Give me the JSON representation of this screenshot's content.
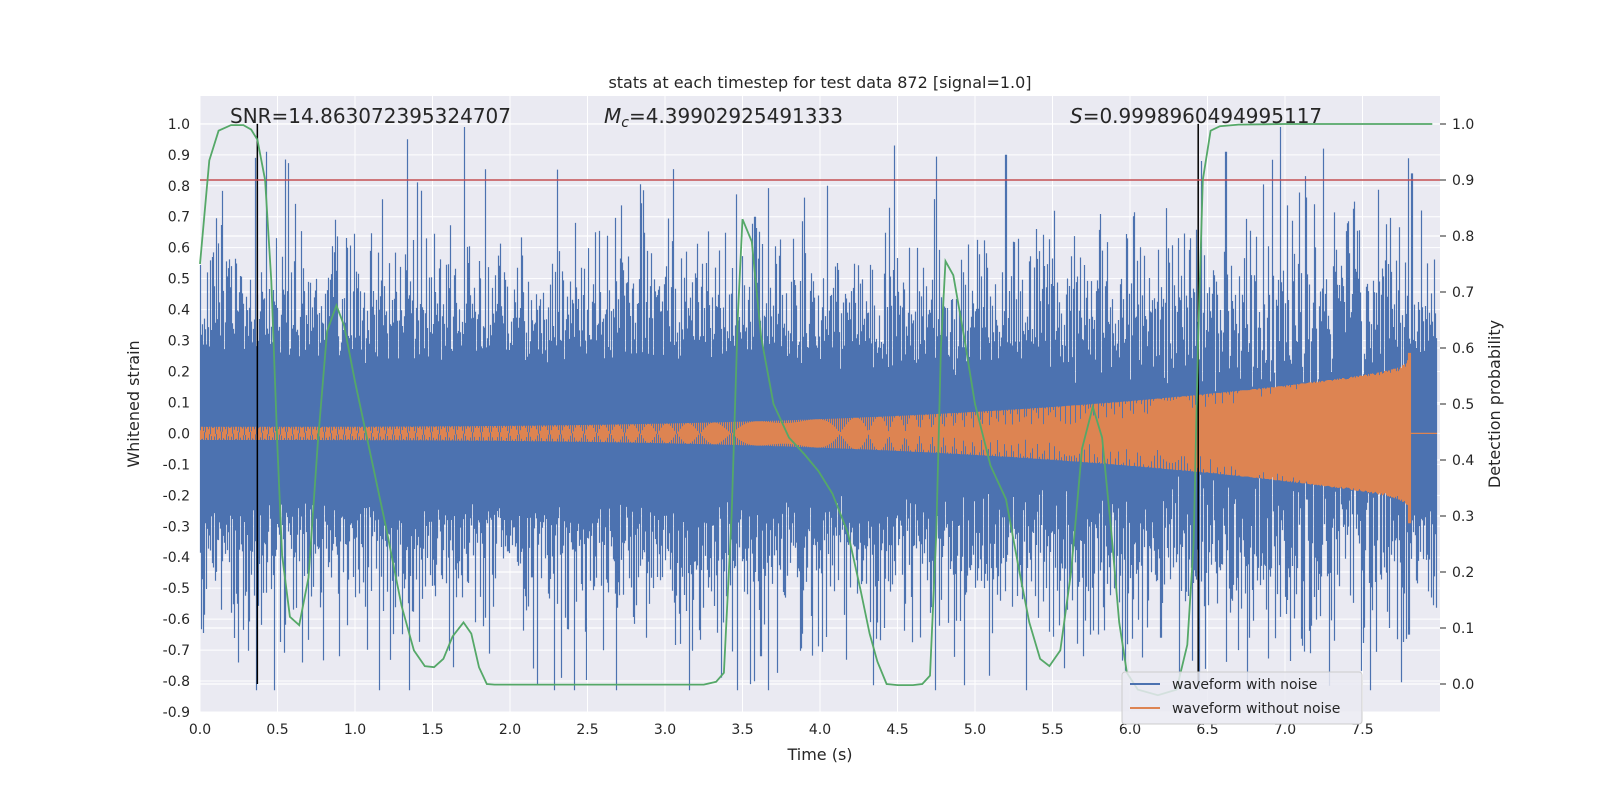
{
  "chart_data": {
    "type": "line",
    "title": "stats at each timestep for test data 872 [signal=1.0]",
    "xlabel": "Time (s)",
    "ylabel": "Whitened strain",
    "ylabel_right": "Detection probability",
    "xlim": [
      0.0,
      8.0
    ],
    "ylim": [
      -0.9,
      1.09
    ],
    "ylim_right": [
      -0.05,
      1.05
    ],
    "x_ticks": [
      "0.0",
      "0.5",
      "1.0",
      "1.5",
      "2.0",
      "2.5",
      "3.0",
      "3.5",
      "4.0",
      "4.5",
      "5.0",
      "5.5",
      "6.0",
      "6.5",
      "7.0",
      "7.5"
    ],
    "y_ticks": [
      "1.0",
      "0.9",
      "0.8",
      "0.7",
      "0.6",
      "0.5",
      "0.4",
      "0.3",
      "0.2",
      "0.1",
      "0.0",
      "-0.1",
      "-0.2",
      "-0.3",
      "-0.4",
      "-0.5",
      "-0.6",
      "-0.7",
      "-0.8",
      "-0.9"
    ],
    "y_ticks_right": [
      "1.0",
      "0.9",
      "0.8",
      "0.7",
      "0.6",
      "0.5",
      "0.4",
      "0.3",
      "0.2",
      "0.1",
      "0.0"
    ],
    "annotations": {
      "snr": "SNR=14.863072395324707",
      "mc_symbol": "M",
      "mc_sub": "c",
      "mc_value": "=4.39902925491333",
      "s_symbol": "S",
      "s_value": "=0.9998960494995117"
    },
    "threshold_right": 0.9,
    "vertical_lines_x": [
      0.37,
      6.44
    ],
    "noise_envelope": {
      "typical_amplitude": 0.33,
      "peaks": [
        {
          "x": 0.05,
          "y": 0.52
        },
        {
          "x": 0.08,
          "y": 0.57
        },
        {
          "x": 0.36,
          "y": 0.89
        },
        {
          "x": 0.43,
          "y": 0.91
        },
        {
          "x": 0.95,
          "y": 0.6
        },
        {
          "x": 1.34,
          "y": 0.95
        },
        {
          "x": 2.55,
          "y": 0.65
        },
        {
          "x": 3.58,
          "y": 0.7
        },
        {
          "x": 4.48,
          "y": 0.93
        },
        {
          "x": 5.2,
          "y": 0.9
        },
        {
          "x": 6.46,
          "y": 0.88
        },
        {
          "x": 6.62,
          "y": 0.91
        },
        {
          "x": 6.97,
          "y": 1.0
        },
        {
          "x": 7.25,
          "y": 0.92
        },
        {
          "x": 7.82,
          "y": 0.84
        },
        {
          "x": 7.88,
          "y": 0.72
        }
      ],
      "troughs": [
        {
          "x": 0.25,
          "y": -0.74
        },
        {
          "x": 0.66,
          "y": -0.74
        },
        {
          "x": 0.9,
          "y": -0.72
        },
        {
          "x": 1.25,
          "y": -0.62
        },
        {
          "x": 2.88,
          "y": -0.66
        },
        {
          "x": 3.55,
          "y": -0.81
        },
        {
          "x": 3.62,
          "y": -0.72
        },
        {
          "x": 5.7,
          "y": -0.72
        },
        {
          "x": 6.2,
          "y": -0.66
        },
        {
          "x": 6.7,
          "y": -0.7
        },
        {
          "x": 7.32,
          "y": -0.67
        },
        {
          "x": 7.8,
          "y": -0.65
        }
      ]
    },
    "series": [
      {
        "name": "waveform with noise",
        "color": "#4c72b0"
      },
      {
        "name": "waveform without noise",
        "color": "#dd8452",
        "amplitude_start": 0.02,
        "amplitude_end": 0.2,
        "peak_time": 7.8,
        "peak_max": 0.26,
        "peak_min": -0.29
      },
      {
        "name": "detection probability",
        "color": "#55a868",
        "points": [
          [
            0.0,
            0.75
          ],
          [
            0.06,
            0.935
          ],
          [
            0.12,
            0.988
          ],
          [
            0.2,
            0.998
          ],
          [
            0.28,
            0.998
          ],
          [
            0.33,
            0.99
          ],
          [
            0.37,
            0.972
          ],
          [
            0.42,
            0.9
          ],
          [
            0.46,
            0.72
          ],
          [
            0.5,
            0.42
          ],
          [
            0.53,
            0.23
          ],
          [
            0.58,
            0.12
          ],
          [
            0.64,
            0.105
          ],
          [
            0.7,
            0.19
          ],
          [
            0.76,
            0.43
          ],
          [
            0.82,
            0.63
          ],
          [
            0.88,
            0.676
          ],
          [
            0.93,
            0.64
          ],
          [
            1.0,
            0.54
          ],
          [
            1.1,
            0.41
          ],
          [
            1.2,
            0.28
          ],
          [
            1.3,
            0.14
          ],
          [
            1.38,
            0.06
          ],
          [
            1.45,
            0.032
          ],
          [
            1.51,
            0.03
          ],
          [
            1.57,
            0.045
          ],
          [
            1.63,
            0.085
          ],
          [
            1.7,
            0.11
          ],
          [
            1.75,
            0.09
          ],
          [
            1.8,
            0.03
          ],
          [
            1.85,
            0.0
          ],
          [
            1.9,
            -0.001
          ],
          [
            2.0,
            -0.001
          ],
          [
            3.25,
            -0.001
          ],
          [
            3.33,
            0.004
          ],
          [
            3.38,
            0.02
          ],
          [
            3.43,
            0.3
          ],
          [
            3.47,
            0.66
          ],
          [
            3.5,
            0.83
          ],
          [
            3.56,
            0.79
          ],
          [
            3.62,
            0.62
          ],
          [
            3.7,
            0.5
          ],
          [
            3.8,
            0.44
          ],
          [
            3.9,
            0.41
          ],
          [
            3.99,
            0.38
          ],
          [
            4.08,
            0.34
          ],
          [
            4.18,
            0.27
          ],
          [
            4.26,
            0.17
          ],
          [
            4.32,
            0.09
          ],
          [
            4.37,
            0.04
          ],
          [
            4.43,
            0.0
          ],
          [
            4.5,
            -0.002
          ],
          [
            4.6,
            -0.002
          ],
          [
            4.66,
            0.0
          ],
          [
            4.71,
            0.015
          ],
          [
            4.75,
            0.27
          ],
          [
            4.78,
            0.6
          ],
          [
            4.81,
            0.755
          ],
          [
            4.86,
            0.73
          ],
          [
            4.93,
            0.62
          ],
          [
            5.0,
            0.5
          ],
          [
            5.1,
            0.39
          ],
          [
            5.2,
            0.33
          ],
          [
            5.28,
            0.21
          ],
          [
            5.35,
            0.11
          ],
          [
            5.42,
            0.045
          ],
          [
            5.48,
            0.032
          ],
          [
            5.55,
            0.06
          ],
          [
            5.62,
            0.2
          ],
          [
            5.69,
            0.42
          ],
          [
            5.76,
            0.495
          ],
          [
            5.82,
            0.44
          ],
          [
            5.88,
            0.27
          ],
          [
            5.93,
            0.11
          ],
          [
            5.98,
            0.02
          ],
          [
            6.05,
            -0.01
          ],
          [
            6.18,
            -0.02
          ],
          [
            6.3,
            -0.01
          ],
          [
            6.37,
            0.07
          ],
          [
            6.41,
            0.25
          ],
          [
            6.44,
            0.62
          ],
          [
            6.47,
            0.9
          ],
          [
            6.52,
            0.988
          ],
          [
            6.58,
            0.996
          ],
          [
            6.7,
            0.999
          ],
          [
            7.0,
            1.0
          ],
          [
            7.95,
            1.0
          ]
        ]
      }
    ],
    "legend_location": "lower right"
  }
}
